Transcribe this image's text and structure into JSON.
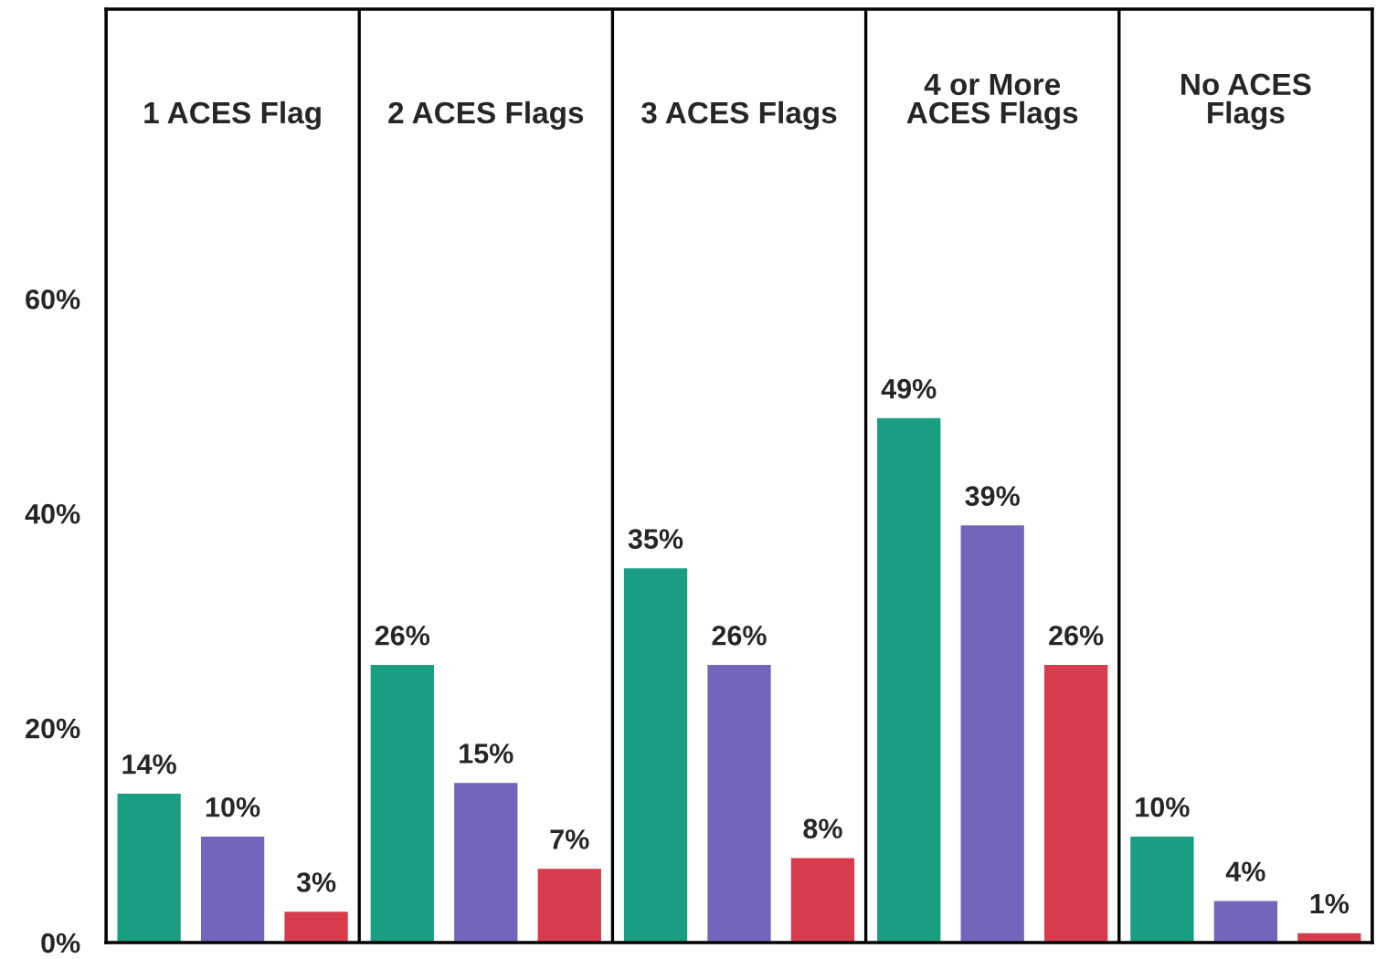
{
  "chart_data": {
    "type": "bar",
    "categories": [
      "1 ACES Flag",
      "2 ACES Flags",
      "3 ACES Flags",
      "4 or More\nACES Flags",
      "No ACES\nFlags"
    ],
    "series": [
      {
        "color": "#1a9e82",
        "values": [
          14,
          26,
          35,
          49,
          10
        ],
        "value_labels": [
          "14%",
          "26%",
          "35%",
          "49%",
          "10%"
        ]
      },
      {
        "color": "#7265bb",
        "values": [
          10,
          15,
          26,
          39,
          4
        ],
        "value_labels": [
          "10%",
          "15%",
          "26%",
          "39%",
          "4%"
        ]
      },
      {
        "color": "#d63c4c",
        "values": [
          3,
          7,
          8,
          26,
          1
        ],
        "value_labels": [
          "3%",
          "7%",
          "8%",
          "26%",
          "1%"
        ]
      }
    ],
    "ylim": [
      0,
      87
    ],
    "yticks": [
      {
        "value": 0,
        "label": "0%"
      },
      {
        "value": 20,
        "label": "20%"
      },
      {
        "value": 40,
        "label": "40%"
      },
      {
        "value": 60,
        "label": "60%"
      }
    ],
    "grid": "x",
    "legend": false
  }
}
